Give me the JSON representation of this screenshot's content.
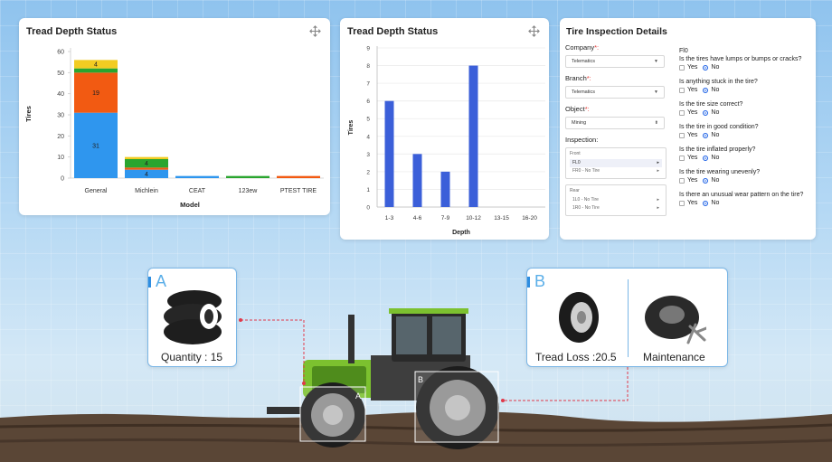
{
  "left_chart": {
    "title": "Tread Depth Status",
    "ylabel": "Tires",
    "xlabel": "Model",
    "yticks": [
      "0",
      "10",
      "20",
      "30",
      "40",
      "50",
      "60"
    ],
    "legend_colors": {
      "blue": "#2f96ee",
      "orange": "#f25a12",
      "green": "#2aa52f",
      "yellow": "#f2cc22"
    }
  },
  "mid_chart": {
    "title": "Tread Depth Status",
    "ylabel": "Tires",
    "xlabel": "Depth",
    "yticks": [
      "0",
      "1",
      "2",
      "3",
      "4",
      "5",
      "6",
      "7",
      "8",
      "9"
    ]
  },
  "chart_data": [
    {
      "type": "bar",
      "stacked": true,
      "title": "Tread Depth Status",
      "xlabel": "Model",
      "ylabel": "Tires",
      "ylim": [
        0,
        60
      ],
      "categories": [
        "General",
        "Michlein",
        "CEAT",
        "123ew",
        "PTEST TIRE"
      ],
      "series": [
        {
          "color": "#2f96ee",
          "values": [
            31,
            4,
            1,
            0,
            0
          ],
          "labels": [
            "31",
            "4",
            "",
            "",
            ""
          ]
        },
        {
          "color": "#f25a12",
          "values": [
            19,
            1,
            0,
            0,
            1
          ],
          "labels": [
            "19",
            "",
            "",
            "",
            ""
          ]
        },
        {
          "color": "#2aa52f",
          "values": [
            2,
            4,
            0,
            1,
            0
          ],
          "labels": [
            "",
            "4",
            "",
            "",
            ""
          ]
        },
        {
          "color": "#f2cc22",
          "values": [
            4,
            1,
            0,
            0,
            0
          ],
          "labels": [
            "4",
            "",
            "",
            "",
            ""
          ]
        }
      ]
    },
    {
      "type": "bar",
      "title": "Tread Depth Status",
      "xlabel": "Depth",
      "ylabel": "Tires",
      "ylim": [
        0,
        9
      ],
      "categories": [
        "1-3",
        "4-6",
        "7-9",
        "10-12",
        "13-15",
        "16-20"
      ],
      "values": [
        6,
        3,
        2,
        8,
        0,
        0
      ],
      "color": "#3b5fd9"
    }
  ],
  "inspection": {
    "title": "Tire Inspection Details",
    "company_label": "Company",
    "company_value": "Telematics",
    "branch_label": "Branch",
    "branch_value": "Telematics",
    "object_label": "Object",
    "object_value": "Mining",
    "inspection_label": "Inspection:",
    "required_mark": "*:",
    "front": {
      "header": "Front",
      "items": [
        "FL0",
        "FR0 - No Tire"
      ]
    },
    "rear": {
      "header": "Rear",
      "items": [
        "1L0 - No Tire",
        "1R0 - No Tire"
      ]
    },
    "tire_id": "Fl0",
    "questions": [
      "Is the tires have lumps or bumps or cracks?",
      "Is anything stuck in the tire?",
      "Is the tire size correct?",
      "Is the tire in good condition?",
      "Is the tire inflated properly?",
      "Is the tire wearing unevenly?",
      "Is there an unusual wear pattern on the tire?"
    ],
    "yes_label": "Yes",
    "no_label": "No"
  },
  "callout_a": {
    "tag": "A",
    "caption": "Quantity : 15"
  },
  "callout_b": {
    "tag": "B",
    "left_caption": "Tread Loss :20.5",
    "right_caption": "Maintenance"
  },
  "wheel_tags": {
    "a": "A",
    "b": "B"
  }
}
